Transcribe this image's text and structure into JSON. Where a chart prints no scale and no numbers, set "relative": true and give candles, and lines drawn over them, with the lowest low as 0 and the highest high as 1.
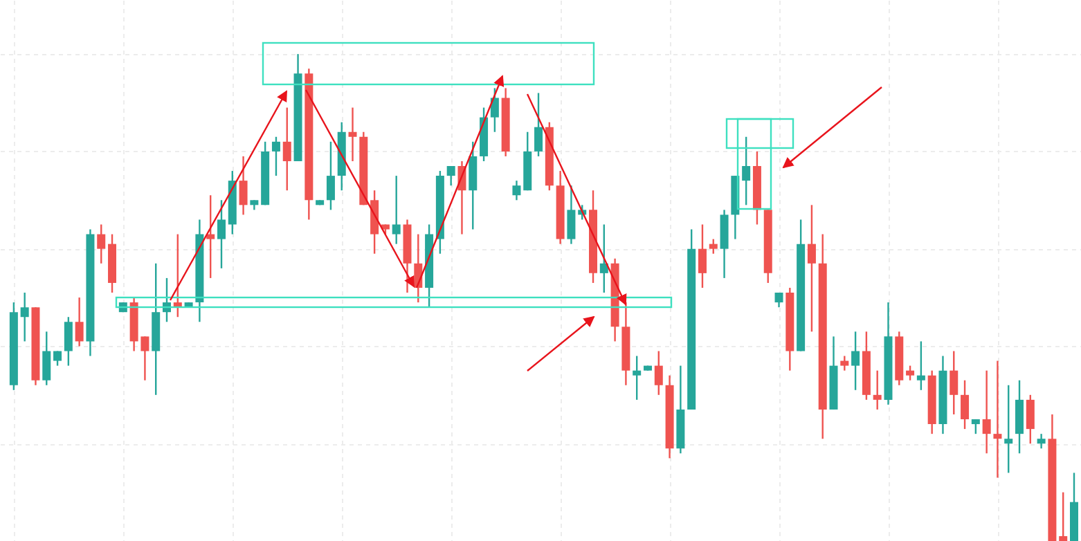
{
  "chart_data": {
    "type": "candlestick",
    "relative": true,
    "grid": true,
    "categories": [
      null,
      null,
      null,
      null,
      null,
      null,
      null,
      null,
      null,
      null,
      null,
      null,
      null,
      null,
      null,
      null,
      null,
      null,
      null,
      null,
      null,
      null,
      null,
      null,
      null,
      null,
      null,
      null,
      null,
      null,
      null,
      null,
      null,
      null,
      null,
      null,
      null,
      null,
      null,
      null,
      null,
      null,
      null,
      null,
      null,
      null,
      null,
      null,
      null,
      null,
      null,
      null,
      null,
      null,
      null,
      null,
      null,
      null,
      null,
      null,
      null,
      null,
      null,
      null,
      null,
      null,
      null,
      null,
      null,
      null,
      null,
      null,
      null,
      null,
      null,
      null,
      null,
      null,
      null,
      null,
      null,
      null,
      null,
      null,
      null,
      null,
      null,
      null,
      null,
      null,
      null,
      null,
      null,
      null,
      null,
      null,
      null,
      null
    ],
    "ohlc": [
      [
        0.32,
        0.49,
        0.31,
        0.47
      ],
      [
        0.46,
        0.51,
        0.41,
        0.48
      ],
      [
        0.48,
        0.48,
        0.32,
        0.33
      ],
      [
        0.33,
        0.43,
        0.32,
        0.39
      ],
      [
        0.37,
        0.39,
        0.36,
        0.39
      ],
      [
        0.39,
        0.46,
        0.36,
        0.45
      ],
      [
        0.45,
        0.5,
        0.4,
        0.41
      ],
      [
        0.41,
        0.64,
        0.38,
        0.63
      ],
      [
        0.63,
        0.65,
        0.57,
        0.6
      ],
      [
        0.61,
        0.63,
        0.51,
        0.53
      ],
      [
        0.47,
        0.49,
        0.47,
        0.49
      ],
      [
        0.49,
        0.5,
        0.39,
        0.41
      ],
      [
        0.42,
        0.42,
        0.33,
        0.39
      ],
      [
        0.39,
        0.57,
        0.3,
        0.47
      ],
      [
        0.47,
        0.54,
        0.45,
        0.49
      ],
      [
        0.49,
        0.63,
        0.46,
        0.48
      ],
      [
        0.48,
        0.49,
        0.48,
        0.49
      ],
      [
        0.49,
        0.66,
        0.45,
        0.63
      ],
      [
        0.63,
        0.71,
        0.54,
        0.62
      ],
      [
        0.62,
        0.7,
        0.56,
        0.66
      ],
      [
        0.65,
        0.76,
        0.63,
        0.74
      ],
      [
        0.74,
        0.79,
        0.67,
        0.69
      ],
      [
        0.69,
        0.7,
        0.68,
        0.7
      ],
      [
        0.69,
        0.82,
        0.69,
        0.8
      ],
      [
        0.8,
        0.83,
        0.75,
        0.82
      ],
      [
        0.82,
        0.89,
        0.72,
        0.78
      ],
      [
        0.78,
        1.0,
        0.78,
        0.96
      ],
      [
        0.96,
        0.97,
        0.66,
        0.7
      ],
      [
        0.69,
        0.7,
        0.69,
        0.7
      ],
      [
        0.7,
        0.82,
        0.68,
        0.75
      ],
      [
        0.75,
        0.86,
        0.72,
        0.84
      ],
      [
        0.84,
        0.89,
        0.78,
        0.83
      ],
      [
        0.83,
        0.84,
        0.69,
        0.69
      ],
      [
        0.7,
        0.72,
        0.59,
        0.63
      ],
      [
        0.65,
        0.65,
        0.63,
        0.64
      ],
      [
        0.63,
        0.75,
        0.61,
        0.65
      ],
      [
        0.65,
        0.66,
        0.51,
        0.57
      ],
      [
        0.57,
        0.63,
        0.49,
        0.52
      ],
      [
        0.52,
        0.65,
        0.48,
        0.63
      ],
      [
        0.62,
        0.76,
        0.59,
        0.75
      ],
      [
        0.75,
        0.77,
        0.73,
        0.77
      ],
      [
        0.77,
        0.78,
        0.63,
        0.72
      ],
      [
        0.72,
        0.82,
        0.64,
        0.79
      ],
      [
        0.79,
        0.89,
        0.78,
        0.87
      ],
      [
        0.87,
        0.93,
        0.84,
        0.91
      ],
      [
        0.91,
        0.93,
        0.79,
        0.8
      ],
      [
        0.71,
        0.74,
        0.7,
        0.73
      ],
      [
        0.72,
        0.84,
        0.72,
        0.8
      ],
      [
        0.8,
        0.92,
        0.79,
        0.85
      ],
      [
        0.85,
        0.86,
        0.72,
        0.73
      ],
      [
        0.73,
        0.76,
        0.61,
        0.62
      ],
      [
        0.62,
        0.73,
        0.61,
        0.68
      ],
      [
        0.67,
        0.69,
        0.66,
        0.68
      ],
      [
        0.68,
        0.72,
        0.53,
        0.55
      ],
      [
        0.55,
        0.65,
        0.51,
        0.57
      ],
      [
        0.57,
        0.58,
        0.41,
        0.44
      ],
      [
        0.44,
        0.49,
        0.32,
        0.35
      ],
      [
        0.34,
        0.38,
        0.29,
        0.35
      ],
      [
        0.35,
        0.36,
        0.35,
        0.36
      ],
      [
        0.36,
        0.39,
        0.3,
        0.32
      ],
      [
        0.32,
        0.34,
        0.17,
        0.19
      ],
      [
        0.19,
        0.36,
        0.18,
        0.27
      ],
      [
        0.27,
        0.64,
        0.27,
        0.6
      ],
      [
        0.6,
        0.65,
        0.52,
        0.55
      ],
      [
        0.61,
        0.62,
        0.59,
        0.6
      ],
      [
        0.6,
        0.68,
        0.54,
        0.67
      ],
      [
        0.67,
        0.75,
        0.62,
        0.75
      ],
      [
        0.74,
        0.83,
        0.69,
        0.77
      ],
      [
        0.77,
        0.8,
        0.65,
        0.68
      ],
      [
        0.68,
        0.68,
        0.53,
        0.55
      ],
      [
        0.49,
        0.51,
        0.48,
        0.51
      ],
      [
        0.51,
        0.52,
        0.35,
        0.39
      ],
      [
        0.39,
        0.66,
        0.39,
        0.61
      ],
      [
        0.61,
        0.69,
        0.43,
        0.57
      ],
      [
        0.57,
        0.63,
        0.21,
        0.27
      ],
      [
        0.27,
        0.42,
        0.27,
        0.36
      ],
      [
        0.37,
        0.38,
        0.35,
        0.36
      ],
      [
        0.36,
        0.43,
        0.31,
        0.39
      ],
      [
        0.39,
        0.43,
        0.29,
        0.3
      ],
      [
        0.3,
        0.35,
        0.27,
        0.29
      ],
      [
        0.29,
        0.49,
        0.28,
        0.42
      ],
      [
        0.42,
        0.43,
        0.32,
        0.33
      ],
      [
        0.35,
        0.36,
        0.33,
        0.34
      ],
      [
        0.33,
        0.41,
        0.31,
        0.34
      ],
      [
        0.34,
        0.35,
        0.22,
        0.24
      ],
      [
        0.24,
        0.38,
        0.22,
        0.35
      ],
      [
        0.35,
        0.39,
        0.26,
        0.3
      ],
      [
        0.3,
        0.33,
        0.23,
        0.25
      ],
      [
        0.24,
        0.25,
        0.22,
        0.25
      ],
      [
        0.25,
        0.35,
        0.18,
        0.22
      ],
      [
        0.22,
        0.37,
        0.13,
        0.21
      ],
      [
        0.2,
        0.32,
        0.14,
        0.21
      ],
      [
        0.22,
        0.33,
        0.18,
        0.29
      ],
      [
        0.29,
        0.3,
        0.2,
        0.23
      ],
      [
        0.2,
        0.22,
        0.19,
        0.21
      ],
      [
        0.21,
        0.26,
        0,
        0
      ],
      [
        0.01,
        0.1,
        0,
        0
      ],
      [
        0,
        0.14,
        0,
        0.08
      ]
    ]
  }
}
